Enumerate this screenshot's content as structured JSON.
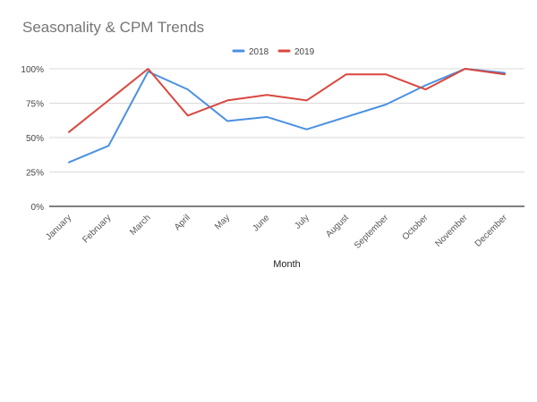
{
  "chart_data": {
    "type": "line",
    "title": "Seasonality & CPM Trends",
    "xlabel": "Month",
    "ylabel": "",
    "categories": [
      "January",
      "February",
      "March",
      "April",
      "May",
      "June",
      "July",
      "August",
      "September",
      "October",
      "November",
      "December"
    ],
    "ylim": [
      0,
      100
    ],
    "yticks": [
      "0%",
      "25%",
      "50%",
      "75%",
      "100%"
    ],
    "grid": true,
    "legend": "top-center",
    "series": [
      {
        "name": "2018",
        "color": "#4a90e2",
        "values": [
          32,
          44,
          98,
          85,
          62,
          65,
          56,
          65,
          74,
          88,
          100,
          97
        ]
      },
      {
        "name": "2019",
        "color": "#d9473f",
        "values": [
          54,
          77,
          100,
          66,
          77,
          81,
          77,
          96,
          96,
          85,
          100,
          96
        ]
      }
    ]
  }
}
